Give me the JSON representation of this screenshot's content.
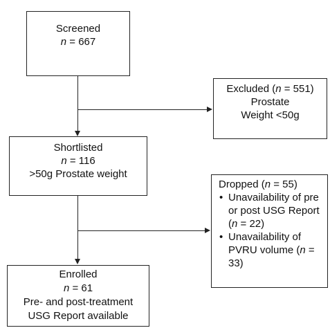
{
  "screened": {
    "title": "Screened",
    "n_label": "n",
    "n_text": " = 667"
  },
  "excluded": {
    "title_pre": "Excluded (",
    "n_label": "n",
    "n_text": " = 551)",
    "line2": "Prostate",
    "line3": "Weight <50g"
  },
  "shortlisted": {
    "title": "Shortlisted",
    "n_label": "n",
    "n_text": " = 116",
    "line3": ">50g Prostate weight"
  },
  "dropped": {
    "title_pre": "Dropped (",
    "n_label": "n",
    "n_text": " = 55)",
    "reason1": {
      "text": "Unavailability of pre or post USG Report (",
      "n_label": "n",
      "n_text": " = 22)"
    },
    "reason2": {
      "text": "Unavailability of PVRU volume (",
      "n_label": "n",
      "n_text": " = 33)"
    }
  },
  "enrolled": {
    "title": "Enrolled",
    "n_label": "n",
    "n_text": " = 61",
    "line3": "Pre- and post-treatment",
    "line4": "USG Report available"
  }
}
